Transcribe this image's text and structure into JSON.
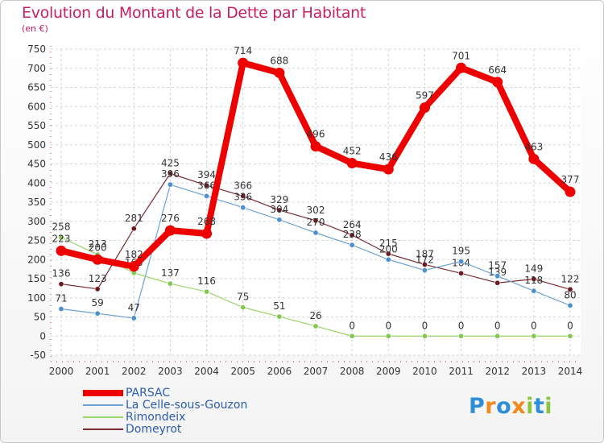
{
  "header": {
    "title": "Evolution du Montant de la Dette par Habitant",
    "unit": "(en €)"
  },
  "colors": {
    "title": "#c71f66",
    "axis_text": "#333333",
    "grid": "#d6d6d6"
  },
  "logo": {
    "text": "Proxiti",
    "letters": [
      "P",
      "r",
      "o",
      "x",
      "i",
      "t",
      "i"
    ],
    "colors": [
      "#2e8fd6",
      "#f08a1c",
      "#2e8fd6",
      "#f08a1c",
      "#8bc53f",
      "#2e8fd6",
      "#8bc53f"
    ]
  },
  "chart_data": {
    "type": "line",
    "title": "Evolution du Montant de la Dette par Habitant",
    "subtitle": "(en €)",
    "xlabel": "",
    "ylabel": "",
    "categories": [
      "2000",
      "2001",
      "2002",
      "2003",
      "2004",
      "2005",
      "2006",
      "2007",
      "2008",
      "2009",
      "2010",
      "2011",
      "2012",
      "2013",
      "2014"
    ],
    "ylim": [
      -50,
      750
    ],
    "yticks": [
      -50,
      0,
      50,
      100,
      150,
      200,
      250,
      300,
      350,
      400,
      450,
      500,
      550,
      600,
      650,
      700,
      750
    ],
    "grid": true,
    "legend_position": "bottom-left",
    "series": [
      {
        "name": "Domeyrot",
        "color": "#7a2a30",
        "marker": "#6e1a22",
        "width": 1.2,
        "values": [
          136,
          123,
          281,
          425,
          394,
          366,
          329,
          302,
          264,
          215,
          187,
          164,
          139,
          149,
          122
        ],
        "labels": [
          "136",
          "123",
          "281",
          "425",
          "394",
          "366",
          "329",
          "302",
          "264",
          "215",
          "187",
          "164",
          "139",
          "149",
          "122"
        ]
      },
      {
        "name": "La Celle-sous-Gouzon",
        "color": "#6aa2d8",
        "marker": "#4d8fd0",
        "width": 1.2,
        "values": [
          71,
          59,
          47,
          396,
          366,
          336,
          304,
          270,
          238,
          200,
          172,
          195,
          157,
          118,
          80
        ],
        "labels": [
          "71",
          "59",
          "47",
          "396",
          "366",
          "336",
          "304",
          "270",
          "238",
          "200",
          "172",
          "195",
          "157",
          "118",
          "80"
        ]
      },
      {
        "name": "Rimondeix",
        "color": "#9ad56a",
        "marker": "#86c84f",
        "width": 1.2,
        "values": [
          258,
          213,
          165,
          137,
          116,
          75,
          51,
          26,
          0,
          0,
          0,
          0,
          0,
          0,
          0
        ],
        "labels": [
          "258",
          "213",
          "165",
          "137",
          "116",
          "75",
          "51",
          "26",
          "0",
          "0",
          "0",
          "0",
          "0",
          "0",
          "0"
        ]
      },
      {
        "name": "PARSAC",
        "color": "#ee0000",
        "marker": "#ee0000",
        "width": 8,
        "values": [
          223,
          200,
          182,
          276,
          268,
          714,
          688,
          496,
          452,
          436,
          597,
          701,
          664,
          463,
          377
        ],
        "labels": [
          "223",
          "200",
          "182",
          "276",
          "268",
          "714",
          "688",
          "496",
          "452",
          "436",
          "597",
          "701",
          "664",
          "463",
          "377"
        ]
      }
    ],
    "legend_order": [
      "PARSAC",
      "La Celle-sous-Gouzon",
      "Rimondeix",
      "Domeyrot"
    ]
  }
}
